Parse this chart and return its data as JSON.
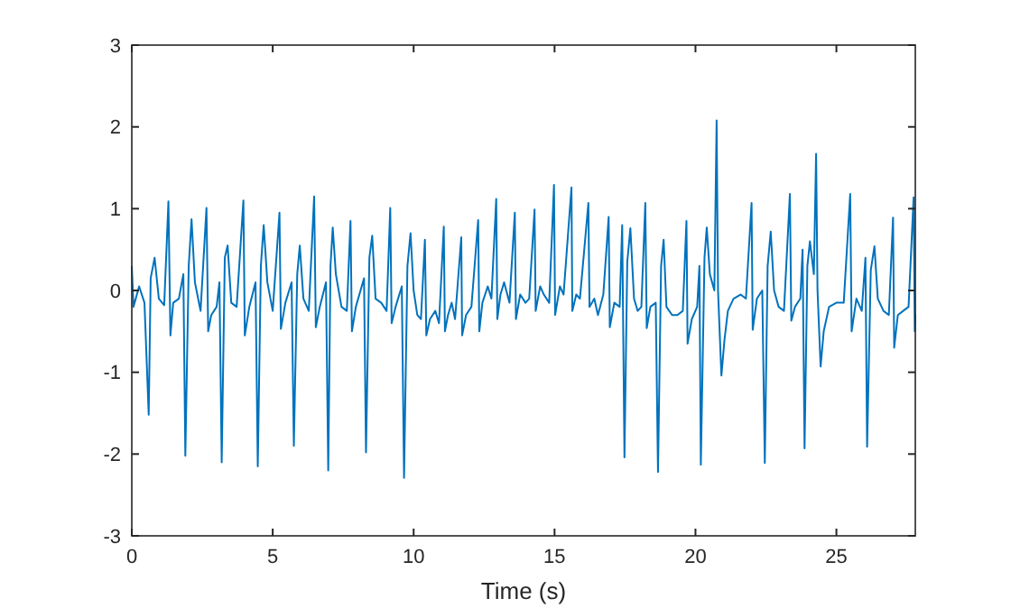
{
  "chart_data": {
    "type": "line",
    "xlabel": "Time (s)",
    "xlim": [
      0,
      27.8
    ],
    "ylim": [
      -3,
      3
    ],
    "xticks": [
      0,
      5,
      10,
      15,
      20,
      25
    ],
    "yticks": [
      -3,
      -2,
      -1,
      0,
      1,
      2,
      3
    ],
    "grid": false,
    "line_style": "solid",
    "marker": "none",
    "series": [
      {
        "color": "#0072bd",
        "x": [
          0,
          0.06,
          0.26,
          0.45,
          0.6,
          0.67,
          0.81,
          0.96,
          1.15,
          1.3,
          1.37,
          1.47,
          1.67,
          1.83,
          1.9,
          2.02,
          2.12,
          2.24,
          2.44,
          2.65,
          2.71,
          2.82,
          3.01,
          3.11,
          3.19,
          3.3,
          3.4,
          3.53,
          3.72,
          3.96,
          4.01,
          4.17,
          4.39,
          4.47,
          4.58,
          4.68,
          4.81,
          5.0,
          5.24,
          5.29,
          5.45,
          5.67,
          5.75,
          5.87,
          5.96,
          6.09,
          6.28,
          6.47,
          6.53,
          6.67,
          6.89,
          6.97,
          7.05,
          7.13,
          7.24,
          7.44,
          7.63,
          7.76,
          7.81,
          7.95,
          8.24,
          8.31,
          8.43,
          8.53,
          8.65,
          8.85,
          9.04,
          9.17,
          9.22,
          9.36,
          9.58,
          9.66,
          9.78,
          9.89,
          10.0,
          10.13,
          10.26,
          10.4,
          10.45,
          10.58,
          10.77,
          10.9,
          11.07,
          11.11,
          11.22,
          11.35,
          11.47,
          11.69,
          11.72,
          11.86,
          12.05,
          12.29,
          12.33,
          12.44,
          12.63,
          12.76,
          12.93,
          12.97,
          13.08,
          13.21,
          13.4,
          13.59,
          13.63,
          13.78,
          13.97,
          14.1,
          14.29,
          14.33,
          14.49,
          14.62,
          14.81,
          14.98,
          15.02,
          15.19,
          15.32,
          15.6,
          15.63,
          15.77,
          15.9,
          16.2,
          16.24,
          16.41,
          16.54,
          16.73,
          16.92,
          16.96,
          17.12,
          17.31,
          17.4,
          17.48,
          17.58,
          17.69,
          17.82,
          17.95,
          18.08,
          18.22,
          18.27,
          18.4,
          18.59,
          18.67,
          18.78,
          18.87,
          18.97,
          19.17,
          19.36,
          19.55,
          19.68,
          19.72,
          19.87,
          20.06,
          20.14,
          20.19,
          20.32,
          20.4,
          20.51,
          20.67,
          20.75,
          20.8,
          20.92,
          21.03,
          21.15,
          21.35,
          21.6,
          21.79,
          21.99,
          22.03,
          22.18,
          22.37,
          22.46,
          22.56,
          22.67,
          22.79,
          22.95,
          23.14,
          23.35,
          23.4,
          23.53,
          23.72,
          23.8,
          23.87,
          23.97,
          24.06,
          24.2,
          24.28,
          24.33,
          24.44,
          24.55,
          24.74,
          25.0,
          25.26,
          25.49,
          25.54,
          25.71,
          25.9,
          26.03,
          26.09,
          26.22,
          26.35,
          26.47,
          26.67,
          26.86,
          27.01,
          27.05,
          27.18,
          27.37,
          27.56,
          27.74,
          27.78,
          27.8
        ],
        "values": [
          0.3,
          -0.2,
          0.05,
          -0.15,
          -1.52,
          0.15,
          0.4,
          -0.1,
          -0.18,
          1.09,
          -0.55,
          -0.15,
          -0.1,
          0.2,
          -2.02,
          0.3,
          0.87,
          0.1,
          -0.25,
          1.01,
          -0.5,
          -0.3,
          -0.2,
          0.1,
          -2.1,
          0.4,
          0.55,
          -0.15,
          -0.2,
          1.1,
          -0.55,
          -0.2,
          0.1,
          -2.15,
          0.3,
          0.8,
          0.1,
          -0.25,
          0.95,
          -0.47,
          -0.15,
          0.1,
          -1.9,
          0.2,
          0.55,
          -0.1,
          -0.25,
          1.15,
          -0.45,
          -0.2,
          0.1,
          -2.2,
          0.3,
          0.77,
          0.2,
          -0.2,
          -0.25,
          0.85,
          -0.5,
          -0.2,
          0.15,
          -1.98,
          0.4,
          0.67,
          -0.1,
          -0.15,
          -0.25,
          1.01,
          -0.4,
          -0.2,
          0.05,
          -2.29,
          0.3,
          0.7,
          0,
          -0.3,
          -0.35,
          0.62,
          -0.55,
          -0.35,
          -0.25,
          -0.4,
          0.78,
          -0.5,
          -0.3,
          -0.15,
          -0.35,
          0.65,
          -0.55,
          -0.3,
          -0.2,
          0.86,
          -0.5,
          -0.15,
          0.05,
          -0.1,
          1.12,
          -0.35,
          -0.05,
          0.1,
          -0.15,
          0.95,
          -0.35,
          -0.05,
          -0.15,
          -0.1,
          0.99,
          -0.25,
          0.05,
          -0.05,
          -0.15,
          1.29,
          -0.3,
          0.05,
          -0.05,
          1.26,
          -0.25,
          -0.05,
          -0.1,
          1.07,
          -0.2,
          -0.1,
          -0.3,
          -0.05,
          0.9,
          -0.45,
          -0.15,
          -0.2,
          0.8,
          -2.04,
          0.35,
          0.76,
          -0.1,
          -0.25,
          -0.2,
          1.07,
          -0.46,
          -0.2,
          -0.15,
          -2.22,
          0.3,
          0.62,
          -0.2,
          -0.3,
          -0.3,
          -0.25,
          0.85,
          -0.65,
          -0.35,
          -0.2,
          0.3,
          -2.13,
          0.4,
          0.77,
          0.2,
          0,
          2.08,
          0,
          -1.04,
          -0.6,
          -0.25,
          -0.1,
          -0.05,
          -0.1,
          1.07,
          -0.48,
          -0.1,
          0,
          -2.11,
          0.3,
          0.72,
          0,
          -0.2,
          -0.25,
          1.18,
          -0.37,
          -0.2,
          -0.1,
          0.5,
          -1.93,
          0.3,
          0.6,
          0.2,
          1.67,
          0,
          -0.93,
          -0.5,
          -0.2,
          -0.15,
          -0.15,
          1.18,
          -0.5,
          -0.1,
          -0.25,
          0.4,
          -1.91,
          0.25,
          0.54,
          -0.1,
          -0.25,
          -0.3,
          0.89,
          -0.7,
          -0.3,
          -0.25,
          -0.2,
          1.14,
          -0.5,
          -0.3
        ]
      }
    ]
  }
}
